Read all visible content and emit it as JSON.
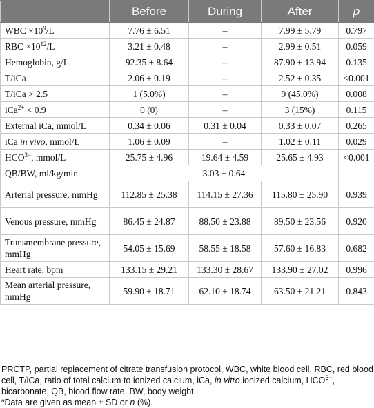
{
  "table": {
    "headers": [
      "",
      "Before",
      "During",
      "After",
      "p"
    ],
    "rows": [
      {
        "label": "WBC ×10",
        "sup": "9",
        "label_post": "/L",
        "before": "7.76 ± 6.51",
        "during": "–",
        "after": "7.99 ± 5.79",
        "p": "0.797"
      },
      {
        "label": "RBC ×10",
        "sup": "12",
        "label_post": "/L",
        "before": "3.21 ± 0.48",
        "during": "–",
        "after": "2.99 ± 0.51",
        "p": "0.059"
      },
      {
        "label": "Hemoglobin, g/L",
        "before": "92.35 ± 8.64",
        "during": "–",
        "after": "87.90 ± 13.94",
        "p": "0.135"
      },
      {
        "label": "T/iCa",
        "before": "2.06 ± 0.19",
        "during": "–",
        "after": "2.52 ± 0.35",
        "p": "<0.001"
      },
      {
        "label": "T/iCa > 2.5",
        "before": "1 (5.0%)",
        "during": "–",
        "after": "9 (45.0%)",
        "p": "0.008"
      },
      {
        "label": "iCa",
        "sup": "2+",
        "label_post": " < 0.9",
        "before": "0 (0)",
        "during": "–",
        "after": "3 (15%)",
        "p": "0.115"
      },
      {
        "label": "External iCa, mmol/L",
        "before": "0.34 ± 0.06",
        "during": "0.31 ± 0.04",
        "after": "0.33 ± 0.07",
        "p": "0.265"
      },
      {
        "label": "iCa ",
        "label_italic": "in vivo",
        "label_post": ", mmol/L",
        "before": "1.06 ± 0.09",
        "during": "–",
        "after": "1.02 ± 0.11",
        "p": "0.029"
      },
      {
        "label": "HCO",
        "sup": "3−",
        "label_post": ", mmol/L",
        "before": "25.75 ± 4.96",
        "during": "19.64 ± 4.59",
        "after": "25.65 ± 4.93",
        "p": "<0.001"
      },
      {
        "label": "QB/BW, ml/kg/min",
        "merged": "3.03 ± 0.64",
        "p": ""
      },
      {
        "label": "Arterial pressure, mmHg",
        "before": "112.85 ± 25.38",
        "during": "114.15 ± 27.36",
        "after": "115.80 ± 25.90",
        "p": "0.939",
        "tall": true
      },
      {
        "label": "Venous pressure, mmHg",
        "before": "86.45 ± 24.87",
        "during": "88.50 ± 23.88",
        "after": "89.50 ± 23.56",
        "p": "0.920",
        "tall": true
      },
      {
        "label": "Transmembrane pressure, mmHg",
        "before": "54.05 ± 15.69",
        "during": "58.55 ± 18.58",
        "after": "57.60 ± 16.83",
        "p": "0.682",
        "tall": true
      },
      {
        "label": "Heart rate, bpm",
        "before": "133.15 ± 29.21",
        "during": "133.30 ± 28.67",
        "after": "133.90 ± 27.02",
        "p": "0.996"
      },
      {
        "label": "Mean arterial pressure, mmHg",
        "before": "59.90 ± 18.71",
        "during": "62.10 ± 18.74",
        "after": "63.50 ± 21.21",
        "p": "0.843",
        "tall": true
      }
    ]
  },
  "footnote": {
    "abbr_1": "PRCTP, partial replacement of citrate transfusion protocol, WBC, white blood cell, RBC, red blood cell, T/iCa, ratio of total calcium to ionized calcium, iCa, ",
    "abbr_italic": "in vitro",
    "abbr_2": " ionized calcium, HCO",
    "abbr_sup": "3−",
    "abbr_3": ", bicarbonate, QB, blood flow rate, BW, body weight.",
    "note_marker": "a",
    "note_1": "Data are given as mean ± SD or ",
    "note_italic": "n",
    "note_2": " (%)."
  }
}
